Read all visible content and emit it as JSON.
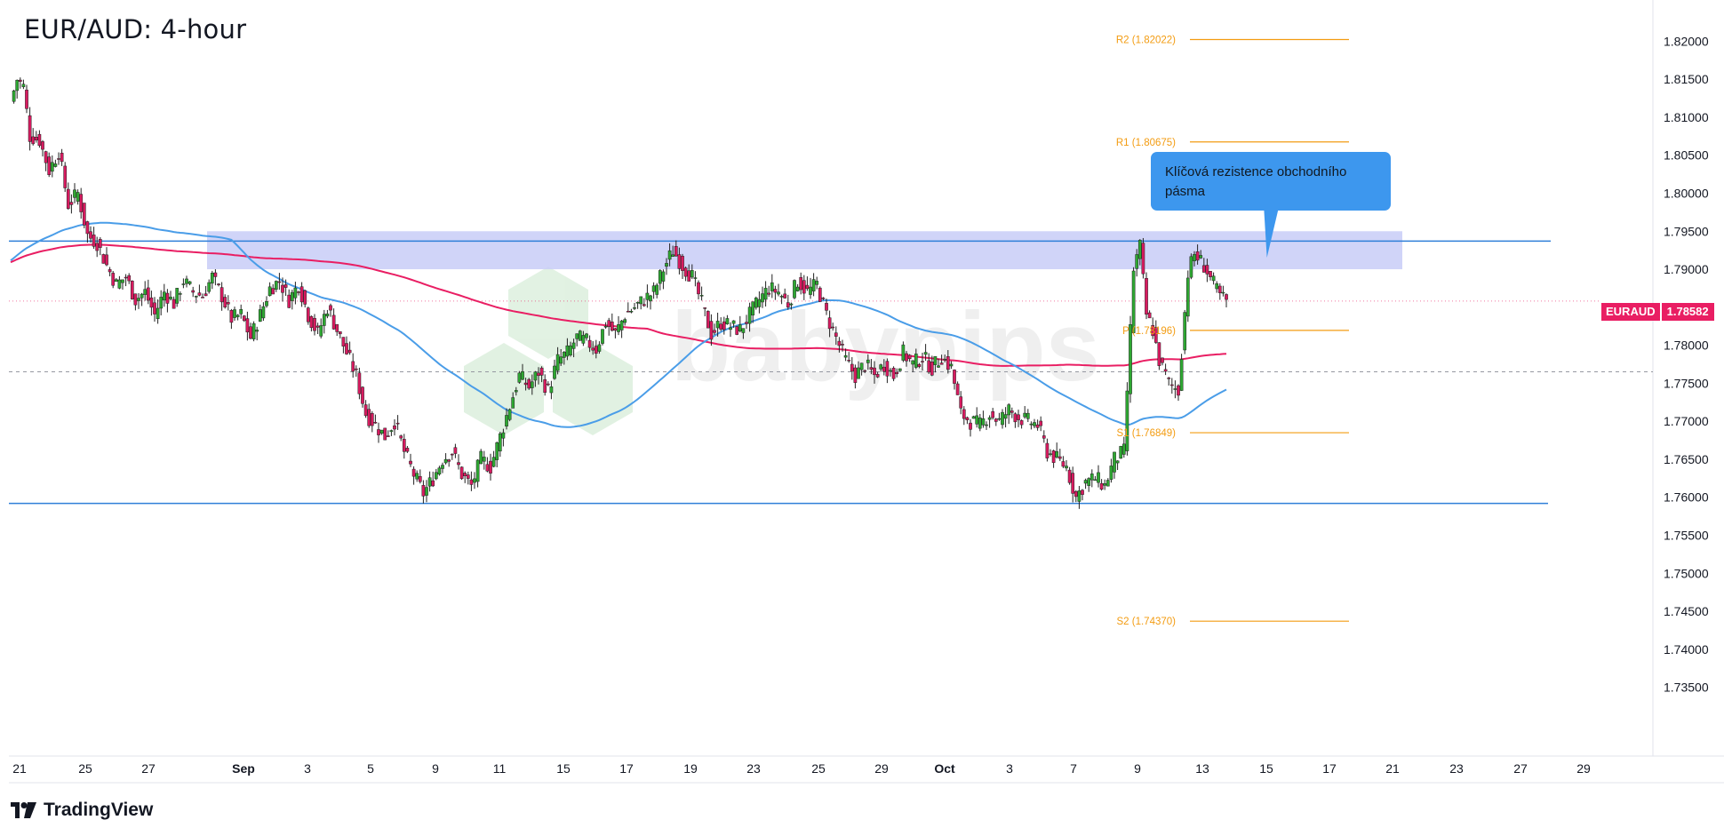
{
  "title": "EUR/AUD: 4-hour",
  "footer": {
    "brand": "TradingView",
    "logo_icon": "tradingview-logo-icon"
  },
  "price_badge": {
    "symbol": "EURAUD",
    "value": "1.78582",
    "color": "#e91e63"
  },
  "callout": {
    "text": "Klíčová rezistence obchodního pásma",
    "color": "#3d97ee"
  },
  "watermark": "babypips",
  "chart_data": {
    "type": "candlestick",
    "y_axis": {
      "ticks": [
        "1.82000",
        "1.81500",
        "1.81000",
        "1.80500",
        "1.80000",
        "1.79500",
        "1.79000",
        "1.78500",
        "1.78000",
        "1.77500",
        "1.77000",
        "1.76500",
        "1.76000",
        "1.75500",
        "1.75000",
        "1.74500",
        "1.74000",
        "1.73500"
      ],
      "range": [
        1.7325,
        1.8225
      ]
    },
    "x_axis": {
      "ticks": [
        {
          "label": "21",
          "bold": false
        },
        {
          "label": "25",
          "bold": false
        },
        {
          "label": "27",
          "bold": false
        },
        {
          "label": "Sep",
          "bold": true
        },
        {
          "label": "3",
          "bold": false
        },
        {
          "label": "5",
          "bold": false
        },
        {
          "label": "9",
          "bold": false
        },
        {
          "label": "11",
          "bold": false
        },
        {
          "label": "15",
          "bold": false
        },
        {
          "label": "17",
          "bold": false
        },
        {
          "label": "19",
          "bold": false
        },
        {
          "label": "23",
          "bold": false
        },
        {
          "label": "25",
          "bold": false
        },
        {
          "label": "29",
          "bold": false
        },
        {
          "label": "Oct",
          "bold": true
        },
        {
          "label": "3",
          "bold": false
        },
        {
          "label": "7",
          "bold": false
        },
        {
          "label": "9",
          "bold": false
        },
        {
          "label": "13",
          "bold": false
        },
        {
          "label": "15",
          "bold": false
        },
        {
          "label": "17",
          "bold": false
        },
        {
          "label": "21",
          "bold": false
        },
        {
          "label": "23",
          "bold": false
        },
        {
          "label": "27",
          "bold": false
        },
        {
          "label": "29",
          "bold": false
        }
      ]
    },
    "pivots": [
      {
        "label": "R2 (1.82022)",
        "value": 1.82022
      },
      {
        "label": "R1 (1.80675)",
        "value": 1.80675
      },
      {
        "label": "P (1.78196)",
        "value": 1.78196
      },
      {
        "label": "S1 (1.76849)",
        "value": 1.76849
      },
      {
        "label": "S2 (1.74370)",
        "value": 1.7437
      }
    ],
    "resistance_zone": {
      "low": 1.79,
      "high": 1.795,
      "line": 1.7937,
      "color": "#c8cdf7"
    },
    "support_line": 1.7592,
    "dashed_reference": 1.7765,
    "last_price": 1.78582,
    "colors": {
      "up": "#2ea832",
      "down": "#d81b60",
      "ma_blue": "#4a9de8",
      "ma_red": "#e91e63",
      "pivot": "#f39c12",
      "line": "#2f7fd8"
    },
    "path_points": [
      [
        0,
        1.812
      ],
      [
        2,
        1.815
      ],
      [
        4,
        1.814
      ],
      [
        6,
        1.8075
      ],
      [
        9,
        1.807
      ],
      [
        12,
        1.803
      ],
      [
        15,
        1.8055
      ],
      [
        18,
        1.7985
      ],
      [
        21,
        1.8
      ],
      [
        24,
        1.7945
      ],
      [
        27,
        1.7935
      ],
      [
        30,
        1.7905
      ],
      [
        33,
        1.788
      ],
      [
        36,
        1.789
      ],
      [
        39,
        1.786
      ],
      [
        42,
        1.787
      ],
      [
        45,
        1.784
      ],
      [
        48,
        1.787
      ],
      [
        51,
        1.7855
      ],
      [
        54,
        1.7885
      ],
      [
        57,
        1.787
      ],
      [
        60,
        1.7865
      ],
      [
        63,
        1.789
      ],
      [
        66,
        1.7865
      ],
      [
        69,
        1.7835
      ],
      [
        72,
        1.784
      ],
      [
        75,
        1.781
      ],
      [
        78,
        1.784
      ],
      [
        81,
        1.7875
      ],
      [
        84,
        1.7885
      ],
      [
        87,
        1.786
      ],
      [
        90,
        1.788
      ],
      [
        93,
        1.784
      ],
      [
        96,
        1.7815
      ],
      [
        99,
        1.785
      ],
      [
        102,
        1.782
      ],
      [
        105,
        1.779
      ],
      [
        108,
        1.776
      ],
      [
        111,
        1.771
      ],
      [
        114,
        1.7695
      ],
      [
        117,
        1.768
      ],
      [
        120,
        1.77
      ],
      [
        123,
        1.766
      ],
      [
        126,
        1.763
      ],
      [
        129,
        1.7605
      ],
      [
        132,
        1.7625
      ],
      [
        135,
        1.765
      ],
      [
        138,
        1.766
      ],
      [
        141,
        1.763
      ],
      [
        144,
        1.7615
      ],
      [
        147,
        1.765
      ],
      [
        150,
        1.764
      ],
      [
        153,
        1.768
      ],
      [
        156,
        1.772
      ],
      [
        159,
        1.776
      ],
      [
        162,
        1.7745
      ],
      [
        165,
        1.7765
      ],
      [
        168,
        1.774
      ],
      [
        171,
        1.778
      ],
      [
        174,
        1.779
      ],
      [
        177,
        1.781
      ],
      [
        180,
        1.7805
      ],
      [
        183,
        1.7795
      ],
      [
        186,
        1.783
      ],
      [
        189,
        1.7815
      ],
      [
        192,
        1.784
      ],
      [
        195,
        1.785
      ],
      [
        198,
        1.786
      ],
      [
        201,
        1.787
      ],
      [
        204,
        1.79
      ],
      [
        207,
        1.7925
      ],
      [
        210,
        1.7905
      ],
      [
        213,
        1.789
      ],
      [
        216,
        1.7855
      ],
      [
        219,
        1.7815
      ],
      [
        222,
        1.783
      ],
      [
        225,
        1.7825
      ],
      [
        228,
        1.782
      ],
      [
        231,
        1.784
      ],
      [
        234,
        1.786
      ],
      [
        237,
        1.7875
      ],
      [
        240,
        1.787
      ],
      [
        243,
        1.7855
      ],
      [
        246,
        1.7885
      ],
      [
        249,
        1.787
      ],
      [
        252,
        1.788
      ],
      [
        255,
        1.784
      ],
      [
        258,
        1.781
      ],
      [
        261,
        1.778
      ],
      [
        264,
        1.776
      ],
      [
        267,
        1.7775
      ],
      [
        270,
        1.776
      ],
      [
        273,
        1.7775
      ],
      [
        276,
        1.776
      ],
      [
        279,
        1.779
      ],
      [
        282,
        1.7775
      ],
      [
        285,
        1.7785
      ],
      [
        288,
        1.777
      ],
      [
        291,
        1.7785
      ],
      [
        294,
        1.777
      ],
      [
        297,
        1.771
      ],
      [
        300,
        1.77
      ],
      [
        303,
        1.7695
      ],
      [
        306,
        1.771
      ],
      [
        309,
        1.77
      ],
      [
        312,
        1.7715
      ],
      [
        315,
        1.7705
      ],
      [
        318,
        1.77
      ],
      [
        321,
        1.7695
      ],
      [
        324,
        1.766
      ],
      [
        327,
        1.765
      ],
      [
        330,
        1.764
      ],
      [
        333,
        1.76
      ],
      [
        336,
        1.762
      ],
      [
        339,
        1.7625
      ],
      [
        342,
        1.7615
      ],
      [
        345,
        1.765
      ],
      [
        348,
        1.766
      ],
      [
        351,
        1.79
      ],
      [
        353,
        1.793
      ],
      [
        355,
        1.784
      ],
      [
        357,
        1.782
      ],
      [
        359,
        1.778
      ],
      [
        362,
        1.775
      ],
      [
        365,
        1.774
      ],
      [
        368,
        1.7895
      ],
      [
        370,
        1.792
      ],
      [
        373,
        1.7905
      ],
      [
        376,
        1.788
      ],
      [
        378,
        1.7865
      ],
      [
        380,
        1.7858
      ]
    ]
  }
}
